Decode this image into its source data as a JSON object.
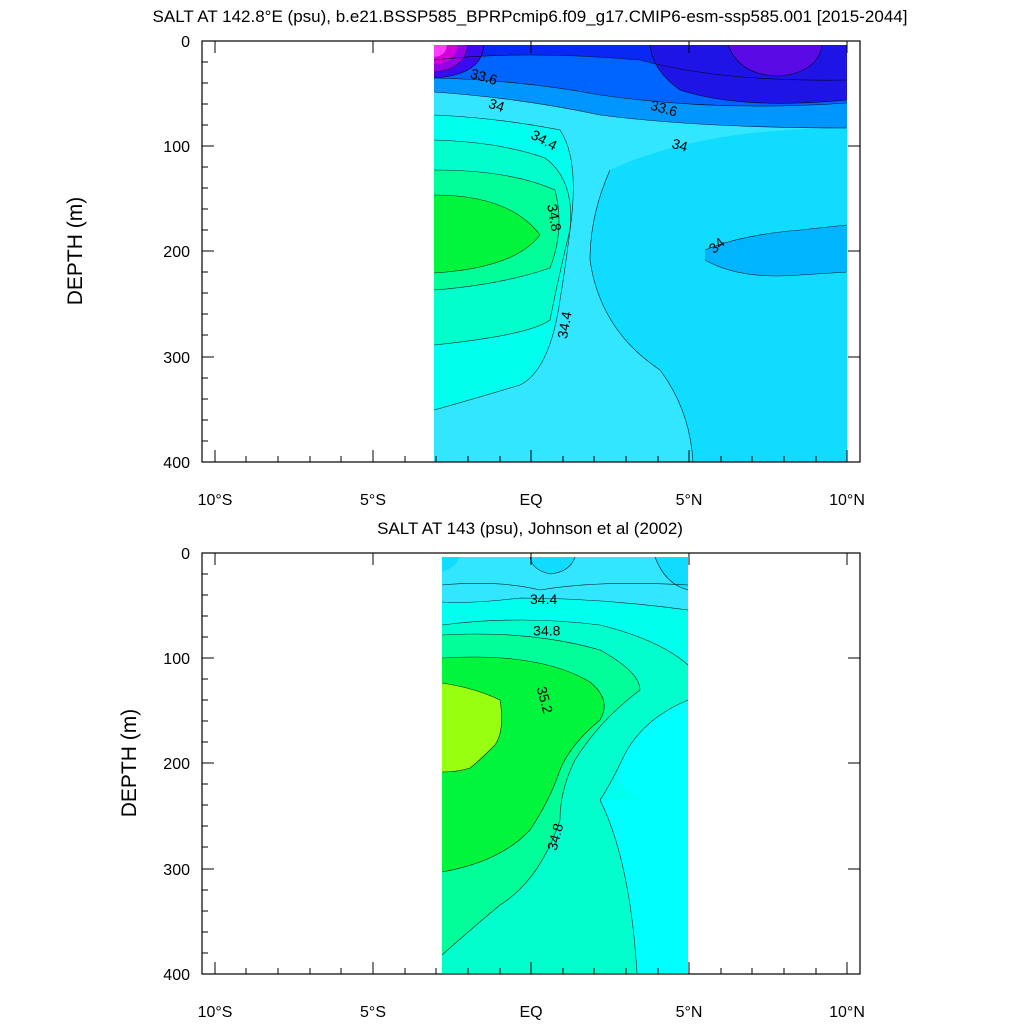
{
  "chart_data": [
    {
      "type": "contour",
      "title": "SALT AT 142.8°E (psu), b.e21.BSSP585_BPRPcmip6.f09_g17.CMIP6-esm-ssp585.001 [2015-2044]",
      "xlabel": "",
      "ylabel": "DEPTH (m)",
      "xlim": [
        -10,
        10
      ],
      "ylim": [
        0,
        400
      ],
      "y_reversed": true,
      "x_tick_labels": [
        "10°S",
        "5°S",
        "EQ",
        "5°N",
        "10°N"
      ],
      "y_tick_labels": [
        "0",
        "100",
        "200",
        "300",
        "400"
      ],
      "data_extent_lat": [
        -3.2,
        10
      ],
      "data_extent_depth": [
        5,
        400
      ],
      "contour_labels": [
        {
          "text": "33.6",
          "lat": -1.5,
          "depth": 35
        },
        {
          "text": "34",
          "lat": -1.1,
          "depth": 62
        },
        {
          "text": "33.6",
          "lat": 4.2,
          "depth": 65
        },
        {
          "text": "34",
          "lat": 4.7,
          "depth": 100
        },
        {
          "text": "34.4",
          "lat": 0.4,
          "depth": 95
        },
        {
          "text": "34.8",
          "lat": 0.7,
          "depth": 168
        },
        {
          "text": "34",
          "lat": 5.9,
          "depth": 195
        },
        {
          "text": "34.4",
          "lat": 1.1,
          "depth": 270
        }
      ]
    },
    {
      "type": "contour",
      "title": "SALT AT 143 (psu), Johnson et al (2002)",
      "xlabel": "",
      "ylabel": "DEPTH (m)",
      "xlim": [
        -10,
        10
      ],
      "ylim": [
        0,
        400
      ],
      "y_reversed": true,
      "x_tick_labels": [
        "10°S",
        "5°S",
        "EQ",
        "5°N",
        "10°N"
      ],
      "y_tick_labels": [
        "0",
        "100",
        "200",
        "300",
        "400"
      ],
      "data_extent_lat": [
        -2.9,
        5
      ],
      "data_extent_depth": [
        5,
        400
      ],
      "contour_labels": [
        {
          "text": "34.4",
          "lat": 0.4,
          "depth": 45
        },
        {
          "text": "34.8",
          "lat": 0.5,
          "depth": 75
        },
        {
          "text": "35.2",
          "lat": 0.4,
          "depth": 140
        },
        {
          "text": "34.8",
          "lat": 0.8,
          "depth": 270
        }
      ]
    }
  ]
}
